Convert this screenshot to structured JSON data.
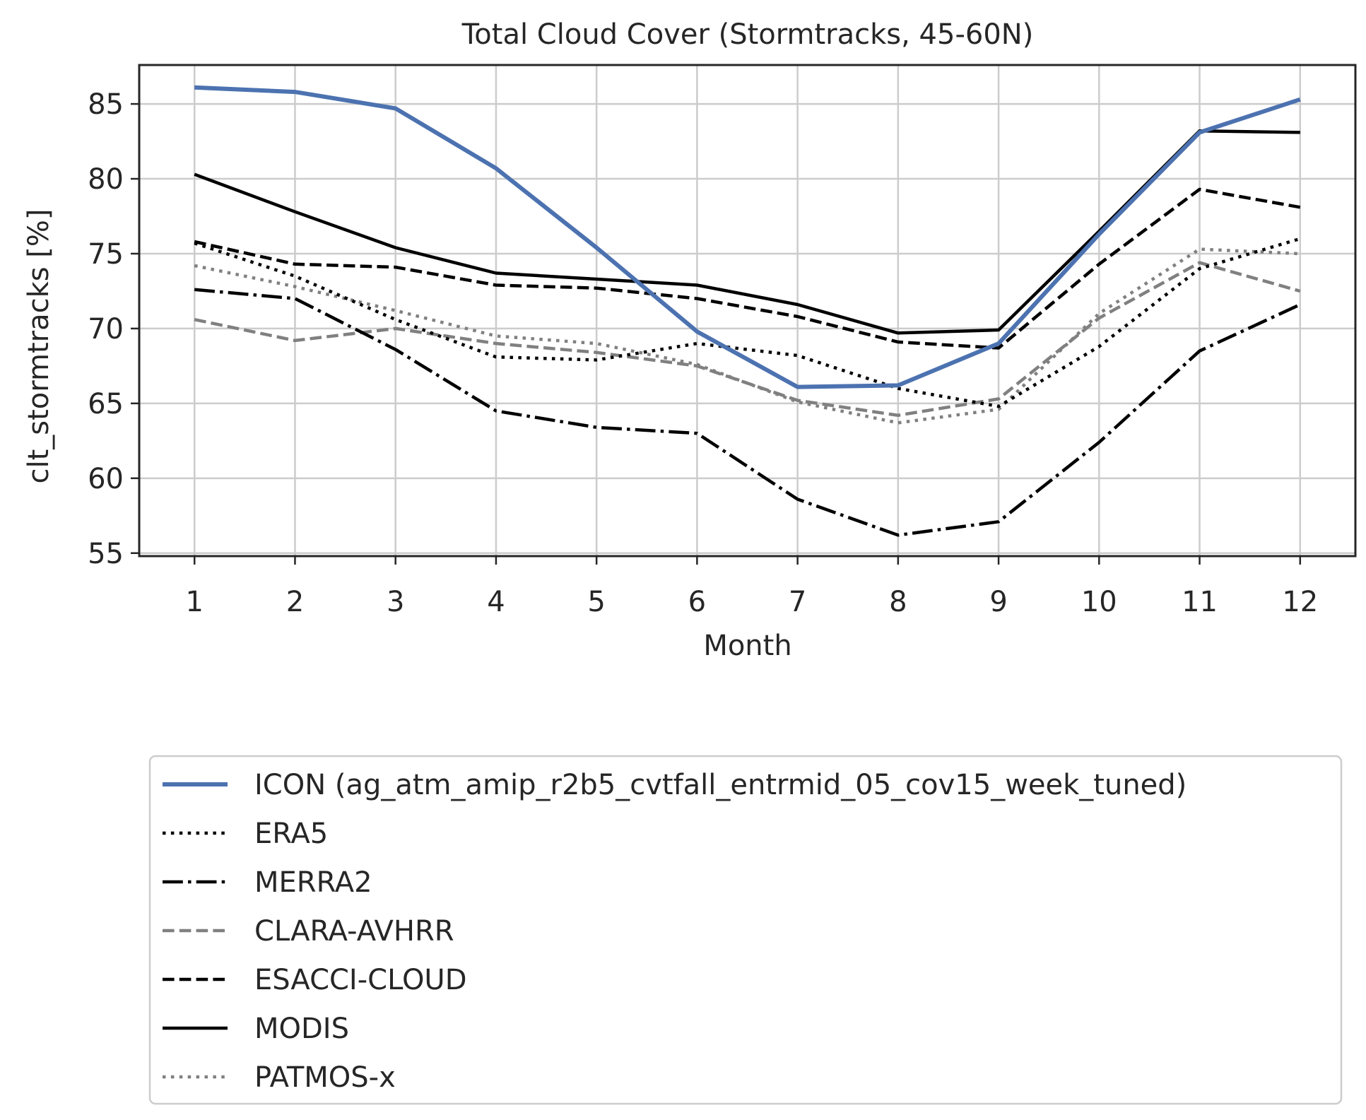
{
  "chart_data": {
    "type": "line",
    "title": "Total Cloud Cover (Stormtracks, 45-60N)",
    "xlabel": "Month",
    "ylabel": "clt_stormtracks [%]",
    "x": [
      1,
      2,
      3,
      4,
      5,
      6,
      7,
      8,
      9,
      10,
      11,
      12
    ],
    "xlim": [
      0.45,
      12.55
    ],
    "ylim": [
      54.8,
      87.6
    ],
    "yticks": [
      55,
      60,
      65,
      70,
      75,
      80,
      85
    ],
    "grid": true,
    "legend_position": "below",
    "series": [
      {
        "name": "ICON (ag_atm_amip_r2b5_cvtfall_entrmid_05_cov15_week_tuned)",
        "color": "#4c72b0",
        "style": "solid",
        "width": 6,
        "values": [
          86.1,
          85.8,
          84.7,
          80.7,
          75.4,
          69.8,
          66.1,
          66.2,
          69.0,
          76.3,
          83.1,
          85.3
        ]
      },
      {
        "name": "ERA5",
        "color": "#000000",
        "style": "dotted",
        "width": 4.5,
        "values": [
          75.7,
          73.5,
          70.6,
          68.1,
          67.9,
          69.0,
          68.2,
          66.0,
          64.8,
          68.8,
          74.0,
          76.0
        ]
      },
      {
        "name": "MERRA2",
        "color": "#000000",
        "style": "dashdot",
        "width": 4.5,
        "values": [
          72.6,
          72.0,
          68.6,
          64.5,
          63.4,
          63.0,
          58.6,
          56.2,
          57.1,
          62.4,
          68.5,
          71.6
        ]
      },
      {
        "name": "CLARA-AVHRR",
        "color": "#808080",
        "style": "dashed",
        "width": 4.5,
        "values": [
          70.6,
          69.2,
          70.0,
          69.0,
          68.4,
          67.5,
          65.2,
          64.2,
          65.3,
          70.7,
          74.4,
          72.5
        ]
      },
      {
        "name": "ESACCI-CLOUD",
        "color": "#000000",
        "style": "dashed",
        "width": 4.5,
        "values": [
          75.8,
          74.3,
          74.1,
          72.9,
          72.7,
          72.0,
          70.8,
          69.1,
          68.7,
          74.3,
          79.3,
          78.1
        ]
      },
      {
        "name": "MODIS",
        "color": "#000000",
        "style": "solid",
        "width": 4.5,
        "values": [
          80.3,
          77.8,
          75.4,
          73.7,
          73.3,
          72.9,
          71.6,
          69.7,
          69.9,
          76.5,
          83.2,
          83.1
        ]
      },
      {
        "name": "PATMOS-x",
        "color": "#808080",
        "style": "dotted",
        "width": 4.5,
        "values": [
          74.2,
          72.8,
          71.2,
          69.5,
          69.0,
          67.6,
          65.1,
          63.7,
          64.6,
          71.0,
          75.3,
          75.0
        ]
      }
    ]
  }
}
